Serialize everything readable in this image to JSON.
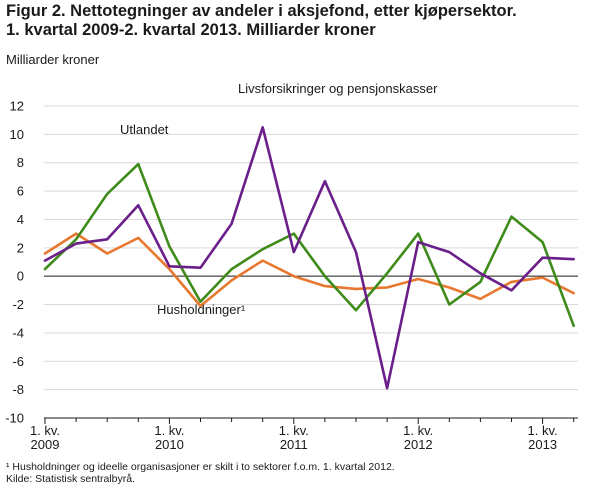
{
  "title_line1": "Figur 2. Nettotegninger av andeler i aksjefond, etter kjøpersektor.",
  "title_line2": "1. kvartal 2009-2. kvartal 2013. Milliarder kroner",
  "footnote": "¹  Husholdninger og ideelle organisasjoner er skilt i to sektorer f.o.m. 1. kvartal 2012.",
  "source": "Kilde: Statistisk sentralbyrå.",
  "chart_data": {
    "type": "line",
    "ylabel": "Milliarder kroner",
    "ylim": [
      -10,
      12
    ],
    "yticks": [
      "12",
      "10",
      "8",
      "6",
      "4",
      "2",
      "0",
      "-2",
      "-4",
      "-6",
      "-8",
      "-10"
    ],
    "xtick_labels": [
      {
        "line1": "1. kv.",
        "line2": "2009"
      },
      {
        "line1": "1. kv.",
        "line2": "2010"
      },
      {
        "line1": "1. kv.",
        "line2": "2011"
      },
      {
        "line1": "1. kv.",
        "line2": "2012"
      },
      {
        "line1": "1. kv.",
        "line2": "2013"
      }
    ],
    "x": [
      "2009K1",
      "2009K2",
      "2009K3",
      "2009K4",
      "2010K1",
      "2010K2",
      "2010K3",
      "2010K4",
      "2011K1",
      "2011K2",
      "2011K3",
      "2011K4",
      "2012K1",
      "2012K2",
      "2012K3",
      "2012K4",
      "2013K1",
      "2013K2"
    ],
    "grid": "horizontal",
    "series": [
      {
        "name": "Utlandet",
        "color": "#3f8b1a",
        "values": [
          0.5,
          2.6,
          5.8,
          7.9,
          2.1,
          -1.8,
          0.5,
          1.9,
          3.0,
          0.0,
          -2.4,
          0.2,
          3.0,
          -2.0,
          -0.4,
          4.2,
          2.4,
          -3.5
        ]
      },
      {
        "name": "Livsforsikringer og pensjonskasser",
        "color": "#6a1f8a",
        "values": [
          1.1,
          2.3,
          2.6,
          5.0,
          0.7,
          0.6,
          3.7,
          10.5,
          1.7,
          6.7,
          1.7,
          -7.9,
          2.4,
          1.7,
          0.2,
          -1.0,
          1.3,
          1.2
        ]
      },
      {
        "name": "Husholdninger¹",
        "color": "#e8782f",
        "values": [
          1.6,
          3.0,
          1.6,
          2.7,
          0.5,
          -2.1,
          -0.3,
          1.1,
          0.0,
          -0.7,
          -0.9,
          -0.8,
          -0.2,
          -0.8,
          -1.6,
          -0.4,
          -0.1,
          -1.2
        ]
      }
    ]
  }
}
